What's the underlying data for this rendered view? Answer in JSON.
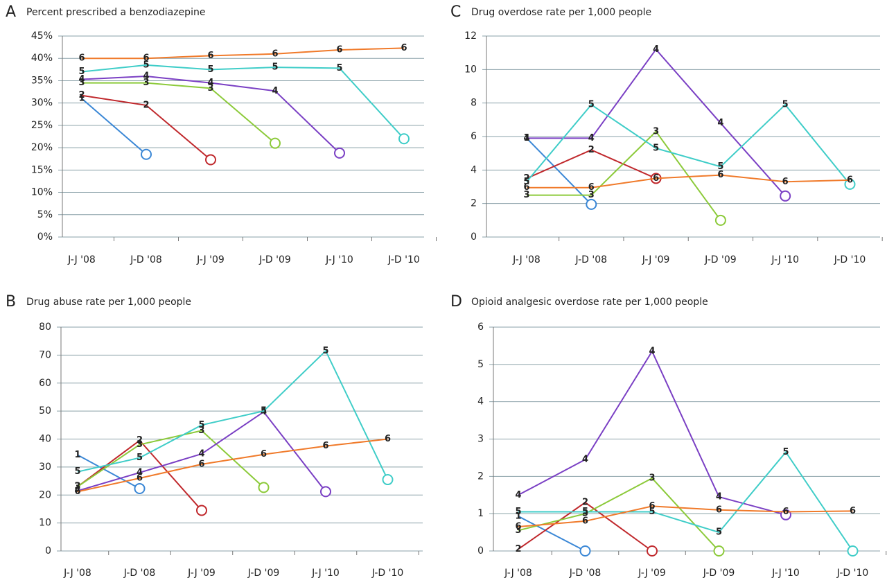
{
  "chart_data": [
    {
      "type": "line",
      "panel": "A",
      "title": "Percent prescribed a benzodiazepine",
      "categories": [
        "J-J '08",
        "J-D '08",
        "J-J '09",
        "J-D '09",
        "J-J '10",
        "J-D '10"
      ],
      "ylim": [
        0,
        45
      ],
      "yticks": [
        {
          "value": 0,
          "label": "0%"
        },
        {
          "value": 5,
          "label": "5%"
        },
        {
          "value": 10,
          "label": "10%"
        },
        {
          "value": 15,
          "label": "15%"
        },
        {
          "value": 20,
          "label": "20%"
        },
        {
          "value": 25,
          "label": "25%"
        },
        {
          "value": 30,
          "label": "30%"
        },
        {
          "value": 35,
          "label": "35%"
        },
        {
          "value": 40,
          "label": "40%"
        },
        {
          "value": 45,
          "label": "45%"
        }
      ],
      "grid": true,
      "series": [
        {
          "name": "1",
          "color": "#3a87d6",
          "end_marker": "circle",
          "values": [
            31,
            18.5,
            null,
            null,
            null,
            null
          ]
        },
        {
          "name": "2",
          "color": "#c0282c",
          "end_marker": "circle",
          "values": [
            31.7,
            29.5,
            17.3,
            null,
            null,
            null
          ]
        },
        {
          "name": "3",
          "color": "#8cca3a",
          "end_marker": "circle",
          "values": [
            34.5,
            34.5,
            33.3,
            21,
            null,
            null
          ]
        },
        {
          "name": "4",
          "color": "#7a3fc4",
          "end_marker": "circle",
          "values": [
            35.3,
            36,
            34.5,
            32.7,
            18.8,
            null
          ]
        },
        {
          "name": "5",
          "color": "#3fcdc8",
          "end_marker": "circle",
          "values": [
            37,
            38.5,
            37.5,
            38,
            37.8,
            22
          ]
        },
        {
          "name": "6",
          "color": "#f07a2a",
          "values": [
            40,
            40,
            40.6,
            41,
            41.9,
            42.3
          ]
        }
      ]
    },
    {
      "type": "line",
      "panel": "B",
      "title": "Drug abuse rate per 1,000 people",
      "categories": [
        "J-J '08",
        "J-D '08",
        "J-J '09",
        "J-D '09",
        "J-J '10",
        "J-D '10"
      ],
      "ylim": [
        0,
        80
      ],
      "yticks": [
        0,
        10,
        20,
        30,
        40,
        50,
        60,
        70,
        80
      ],
      "grid": true,
      "series": [
        {
          "name": "1",
          "color": "#3a87d6",
          "end_marker": "circle",
          "values": [
            34.3,
            22.3,
            null,
            null,
            null,
            null
          ]
        },
        {
          "name": "2",
          "color": "#c0282c",
          "end_marker": "circle",
          "values": [
            23,
            39.5,
            14.5,
            null,
            null,
            null
          ]
        },
        {
          "name": "3",
          "color": "#8cca3a",
          "end_marker": "circle",
          "values": [
            23,
            38,
            43,
            22.7,
            null,
            null
          ]
        },
        {
          "name": "4",
          "color": "#7a3fc4",
          "end_marker": "circle",
          "values": [
            21.5,
            28,
            34.7,
            49.7,
            21.2,
            null
          ]
        },
        {
          "name": "5",
          "color": "#3fcdc8",
          "end_marker": "circle",
          "values": [
            28.3,
            33.3,
            45,
            50,
            71.5,
            25.5
          ]
        },
        {
          "name": "6",
          "color": "#f07a2a",
          "values": [
            21.2,
            26,
            31,
            34.5,
            37.5,
            40
          ]
        }
      ]
    },
    {
      "type": "line",
      "panel": "C",
      "title": "Drug overdose rate per 1,000 people",
      "categories": [
        "J-J '08",
        "J-D '08",
        "J-J '09",
        "J-D '09",
        "J-J '10",
        "J-D '10"
      ],
      "ylim": [
        0,
        12
      ],
      "yticks": [
        0,
        2,
        4,
        6,
        8,
        10,
        12
      ],
      "grid": true,
      "series": [
        {
          "name": "1",
          "color": "#3a87d6",
          "end_marker": "circle",
          "values": [
            5.9,
            1.95,
            null,
            null,
            null,
            null
          ]
        },
        {
          "name": "2",
          "color": "#c0282c",
          "end_marker": "circle",
          "values": [
            3.5,
            5.2,
            3.5,
            null,
            null,
            null
          ]
        },
        {
          "name": "3",
          "color": "#8cca3a",
          "end_marker": "circle",
          "values": [
            2.5,
            2.5,
            6.3,
            1.0,
            null,
            null
          ]
        },
        {
          "name": "4",
          "color": "#7a3fc4",
          "end_marker": "circle",
          "values": [
            5.9,
            5.9,
            11.2,
            6.8,
            2.45,
            null
          ]
        },
        {
          "name": "5",
          "color": "#3fcdc8",
          "end_marker": "circle",
          "values": [
            3.3,
            7.9,
            5.3,
            4.2,
            7.9,
            3.15
          ]
        },
        {
          "name": "6",
          "color": "#f07a2a",
          "values": [
            2.95,
            2.95,
            3.5,
            3.7,
            3.3,
            3.4
          ]
        }
      ]
    },
    {
      "type": "line",
      "panel": "D",
      "title": "Opioid analgesic overdose rate per 1,000 people",
      "categories": [
        "J-J '08",
        "J-D '08",
        "J-J '09",
        "J-D '09",
        "J-J '10",
        "J-D '10"
      ],
      "ylim": [
        0,
        6
      ],
      "yticks": [
        0,
        1,
        2,
        3,
        4,
        5,
        6
      ],
      "grid": true,
      "series": [
        {
          "name": "1",
          "color": "#3a87d6",
          "end_marker": "circle",
          "values": [
            0.93,
            0,
            null,
            null,
            null,
            null
          ]
        },
        {
          "name": "2",
          "color": "#c0282c",
          "end_marker": "circle",
          "values": [
            0.05,
            1.3,
            0,
            null,
            null,
            null
          ]
        },
        {
          "name": "3",
          "color": "#8cca3a",
          "end_marker": "circle",
          "values": [
            0.55,
            1.0,
            1.95,
            0,
            null,
            null
          ]
        },
        {
          "name": "4",
          "color": "#7a3fc4",
          "end_marker": "circle",
          "values": [
            1.5,
            2.45,
            5.35,
            1.45,
            0.97,
            null
          ]
        },
        {
          "name": "5",
          "color": "#3fcdc8",
          "end_marker": "circle",
          "values": [
            1.05,
            1.05,
            1.05,
            0.5,
            2.65,
            0
          ]
        },
        {
          "name": "6",
          "color": "#f07a2a",
          "values": [
            0.65,
            0.8,
            1.2,
            1.1,
            1.05,
            1.07
          ]
        }
      ]
    }
  ]
}
